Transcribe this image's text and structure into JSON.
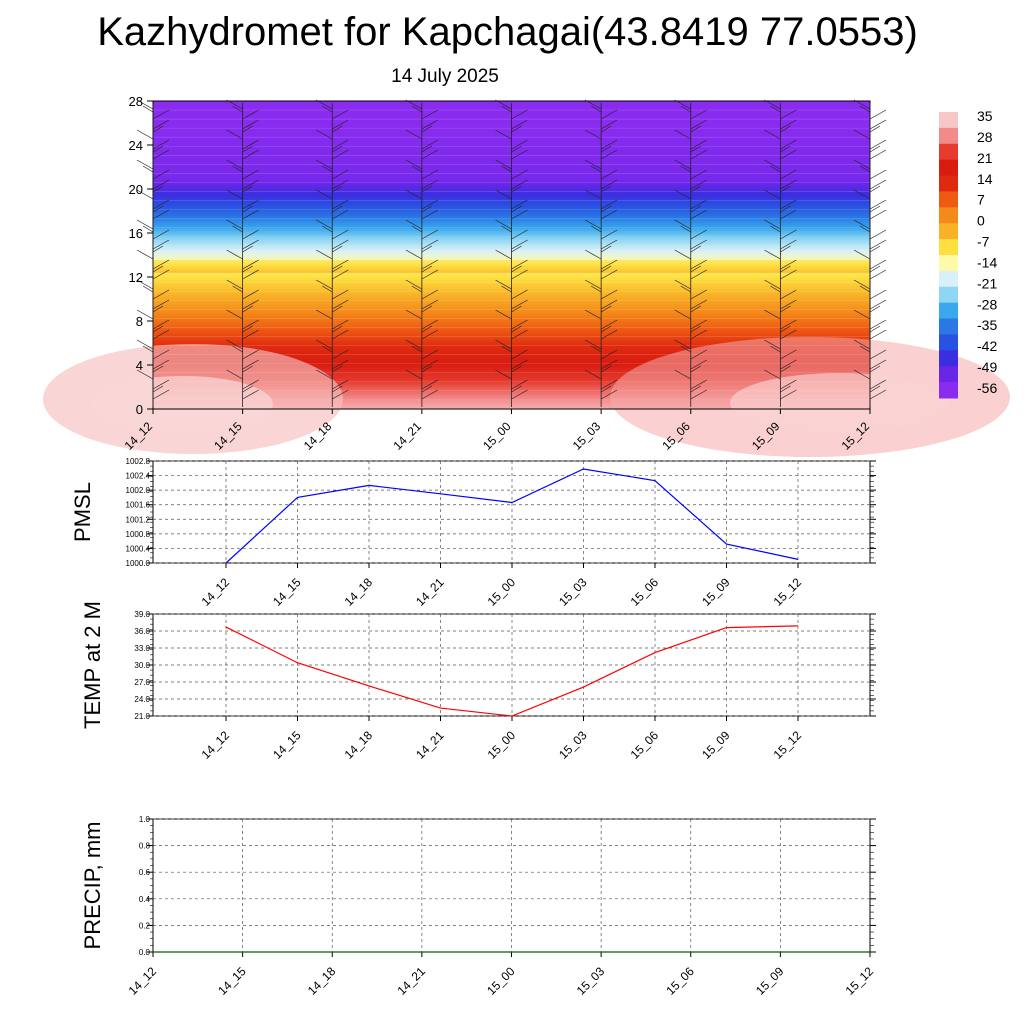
{
  "title": "Kazhydromet for Kapchagai(43.8419 77.0553)",
  "subtitle": "14 July 2025",
  "time_labels": [
    "14_12",
    "14_15",
    "14_18",
    "14_21",
    "15_00",
    "15_03",
    "15_06",
    "15_09",
    "15_12"
  ],
  "chart_data": [
    {
      "type": "heatmap",
      "name": "Temperature cross-section with wind barbs",
      "y_ticks": [
        0,
        4,
        8,
        12,
        16,
        20,
        24,
        28
      ],
      "ylim": [
        0,
        28
      ],
      "x_ticks": [
        "14_12",
        "14_15",
        "14_18",
        "14_21",
        "15_00",
        "15_03",
        "15_06",
        "15_09",
        "15_12"
      ],
      "colorbar_labels": [
        "35",
        "28",
        "21",
        "14",
        "7",
        "0",
        "-7",
        "-14",
        "-21",
        "-28",
        "-35",
        "-42",
        "-49",
        "-56"
      ],
      "colorbar_colors": [
        "#f7c6c6",
        "#f28a8a",
        "#e63b2e",
        "#d81c10",
        "#df2a10",
        "#ee5a12",
        "#f48a1a",
        "#f9b228",
        "#fde040",
        "#fdfaa8",
        "#d8f0f8",
        "#8fd6f4",
        "#3aa8ec",
        "#2a78e4",
        "#2a52e2",
        "#3a2ee0",
        "#6a26e8",
        "#8a2cf0"
      ],
      "colorbar_levels": [
        35,
        28,
        21,
        14,
        7,
        0,
        -7,
        -14,
        -21,
        -28,
        -35,
        -42,
        -49,
        -56
      ]
    },
    {
      "type": "line",
      "ylabel": "PMSL",
      "y_ticks": [
        "1000.0",
        "1000.4",
        "1000.8",
        "1001.2",
        "1001.6",
        "1002.0",
        "1002.4",
        "1002.8"
      ],
      "ylim": [
        1000.0,
        1002.8
      ],
      "categories": [
        "14_12",
        "14_15",
        "14_18",
        "14_21",
        "15_00",
        "15_03",
        "15_06",
        "15_09",
        "15_12"
      ],
      "values": [
        1000.0,
        1001.8,
        1002.13,
        1001.9,
        1001.66,
        1002.58,
        1002.26,
        1000.52,
        1000.1
      ],
      "color": "#0000ff"
    },
    {
      "type": "line",
      "ylabel": "TEMP at 2 M",
      "y_ticks": [
        "21.0",
        "24.0",
        "27.0",
        "30.0",
        "33.0",
        "36.0",
        "39.0"
      ],
      "ylim": [
        21.0,
        39.0
      ],
      "categories": [
        "14_12",
        "14_15",
        "14_18",
        "14_21",
        "15_00",
        "15_03",
        "15_06",
        "15_09",
        "15_12"
      ],
      "values": [
        36.7,
        30.4,
        26.3,
        22.4,
        21.0,
        26.1,
        32.2,
        36.6,
        36.9
      ],
      "color": "#ff0000"
    },
    {
      "type": "line",
      "ylabel": "PRECIP, mm",
      "y_ticks": [
        "0.0",
        "0.2",
        "0.4",
        "0.6",
        "0.8",
        "1.0"
      ],
      "ylim": [
        0.0,
        1.0
      ],
      "categories": [
        "14_12",
        "14_15",
        "14_18",
        "14_21",
        "15_00",
        "15_03",
        "15_06",
        "15_09",
        "15_12"
      ],
      "values": [
        0,
        0,
        0,
        0,
        0,
        0,
        0,
        0,
        0
      ],
      "color": "#006400"
    }
  ]
}
